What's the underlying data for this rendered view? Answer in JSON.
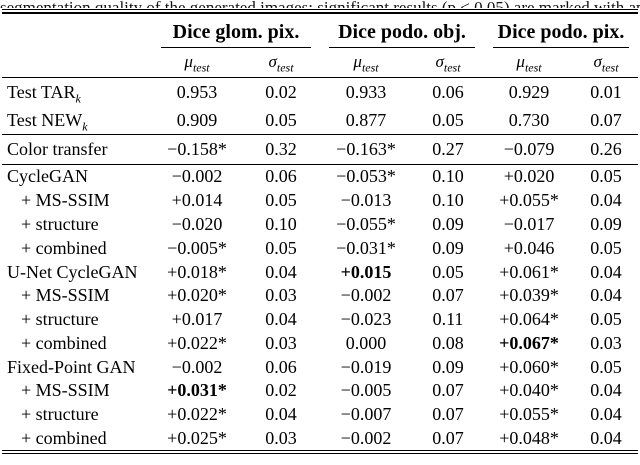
{
  "caption": {
    "text": "segmentation quality of the generated images; significant results (p < 0.05) are marked with an asterisk"
  },
  "table": {
    "groups": [
      "Dice glom. pix.",
      "Dice podo. obj.",
      "Dice podo. pix."
    ],
    "subheader": {
      "mu": {
        "symbol": "μ",
        "sub": "test"
      },
      "sigma": {
        "symbol": "σ",
        "sub": "test"
      }
    },
    "sections": [
      {
        "rows": [
          {
            "label": "Test TAR",
            "label_sub": "k",
            "indent": false,
            "cells": [
              "0.953",
              "0.02",
              "0.933",
              "0.06",
              "0.929",
              "0.01"
            ],
            "bold": []
          },
          {
            "label": "Test NEW",
            "label_sub": "k",
            "indent": false,
            "cells": [
              "0.909",
              "0.05",
              "0.877",
              "0.05",
              "0.730",
              "0.07"
            ],
            "bold": []
          }
        ]
      },
      {
        "rows": [
          {
            "label": "Color transfer",
            "label_sub": "",
            "indent": false,
            "cells": [
              "−0.158*",
              "0.32",
              "−0.163*",
              "0.27",
              "−0.079",
              "0.26"
            ],
            "bold": []
          }
        ]
      },
      {
        "rows": [
          {
            "label": "CycleGAN",
            "label_sub": "",
            "indent": false,
            "cells": [
              "−0.002",
              "0.06",
              "−0.053*",
              "0.10",
              "+0.020",
              "0.05"
            ],
            "bold": []
          },
          {
            "label": "+ MS-SSIM",
            "label_sub": "",
            "indent": true,
            "cells": [
              "+0.014",
              "0.05",
              "−0.013",
              "0.10",
              "+0.055*",
              "0.04"
            ],
            "bold": []
          },
          {
            "label": "+ structure",
            "label_sub": "",
            "indent": true,
            "cells": [
              "−0.020",
              "0.10",
              "−0.055*",
              "0.09",
              "−0.017",
              "0.09"
            ],
            "bold": []
          },
          {
            "label": "+ combined",
            "label_sub": "",
            "indent": true,
            "cells": [
              "−0.005*",
              "0.05",
              "−0.031*",
              "0.09",
              "+0.046",
              "0.05"
            ],
            "bold": []
          },
          {
            "label": "U-Net CycleGAN",
            "label_sub": "",
            "indent": false,
            "cells": [
              "+0.018*",
              "0.04",
              "+0.015",
              "0.05",
              "+0.061*",
              "0.04"
            ],
            "bold": [
              2
            ]
          },
          {
            "label": "+ MS-SSIM",
            "label_sub": "",
            "indent": true,
            "cells": [
              "+0.020*",
              "0.03",
              "−0.002",
              "0.07",
              "+0.039*",
              "0.04"
            ],
            "bold": []
          },
          {
            "label": "+ structure",
            "label_sub": "",
            "indent": true,
            "cells": [
              "+0.017",
              "0.04",
              "−0.023",
              "0.11",
              "+0.064*",
              "0.05"
            ],
            "bold": []
          },
          {
            "label": "+ combined",
            "label_sub": "",
            "indent": true,
            "cells": [
              "+0.022*",
              "0.03",
              "0.000",
              "0.08",
              "+0.067*",
              "0.03"
            ],
            "bold": [
              4
            ]
          },
          {
            "label": "Fixed-Point GAN",
            "label_sub": "",
            "indent": false,
            "cells": [
              "−0.002",
              "0.06",
              "−0.019",
              "0.09",
              "+0.060*",
              "0.05"
            ],
            "bold": []
          },
          {
            "label": "+ MS-SSIM",
            "label_sub": "",
            "indent": true,
            "cells": [
              "+0.031*",
              "0.02",
              "−0.005",
              "0.07",
              "+0.040*",
              "0.04"
            ],
            "bold": [
              0
            ]
          },
          {
            "label": "+ structure",
            "label_sub": "",
            "indent": true,
            "cells": [
              "+0.022*",
              "0.04",
              "−0.007",
              "0.07",
              "+0.055*",
              "0.04"
            ],
            "bold": []
          },
          {
            "label": "+ combined",
            "label_sub": "",
            "indent": true,
            "cells": [
              "+0.025*",
              "0.03",
              "−0.002",
              "0.07",
              "+0.048*",
              "0.04"
            ],
            "bold": []
          }
        ]
      }
    ]
  }
}
